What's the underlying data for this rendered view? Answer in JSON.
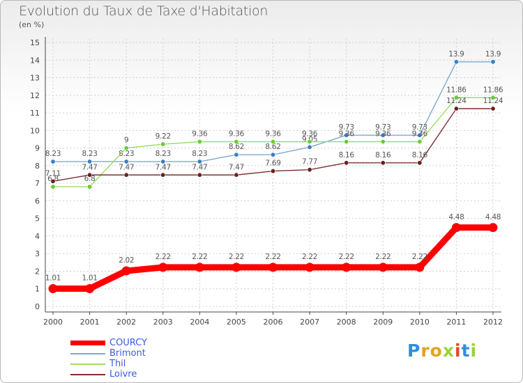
{
  "title": "Evolution du Taux de Taxe d'Habitation",
  "subtitle": "(en %)",
  "logo": {
    "letters": [
      "P",
      "r",
      "o",
      "x",
      "i",
      "t",
      "i"
    ],
    "colors": [
      "#2f8ee0",
      "#e8a21c",
      "#e8a21c",
      "#9bd23a",
      "#e04a2a",
      "#2f8ee0",
      "#9bd23a"
    ]
  },
  "chart_data": {
    "type": "line",
    "x": [
      "2000",
      "2001",
      "2002",
      "2003",
      "2004",
      "2005",
      "2006",
      "2007",
      "2008",
      "2009",
      "2010",
      "2011",
      "2012"
    ],
    "ylim": [
      0,
      15
    ],
    "yticks": [
      0,
      1,
      2,
      3,
      4,
      5,
      6,
      7,
      8,
      9,
      10,
      11,
      12,
      13,
      14,
      15
    ],
    "grid": true,
    "legend_position": "bottom-left",
    "series": [
      {
        "name": "COURCY",
        "color": "#ff0000",
        "thick": true,
        "values": [
          1.01,
          1.01,
          2.02,
          2.22,
          2.22,
          2.22,
          2.22,
          2.22,
          2.22,
          2.22,
          2.22,
          4.48,
          4.48
        ],
        "labels": [
          "1.01",
          "1.01",
          "2.02",
          "2.22",
          "2.22",
          "2.22",
          "2.22",
          "2.22",
          "2.22",
          "2.22",
          "2.22",
          "4.48",
          "4.48"
        ]
      },
      {
        "name": "Brimont",
        "color": "#7fa8d0",
        "marker": "#3a7fc4",
        "values": [
          8.23,
          8.23,
          8.23,
          8.23,
          8.23,
          8.62,
          8.62,
          9.05,
          9.73,
          9.73,
          9.73,
          13.9,
          13.9
        ],
        "labels": [
          "8.23",
          "8.23",
          "8.23",
          "8.23",
          "8.23",
          "8.62",
          "8.62",
          "9.05",
          "9.73",
          "9.73",
          "9.73",
          "13.9",
          "13.9"
        ]
      },
      {
        "name": "Thil",
        "color": "#99dd66",
        "marker": "#66cc33",
        "values": [
          6.8,
          6.8,
          9.0,
          9.22,
          9.36,
          9.36,
          9.36,
          9.36,
          9.36,
          9.36,
          9.36,
          11.86,
          11.86
        ],
        "labels": [
          "6.8",
          "6.8",
          "9",
          "9.22",
          "9.36",
          "9.36",
          "9.36",
          "9.36",
          "9.36",
          "9.36",
          "9.36",
          "11.86",
          "11.86"
        ]
      },
      {
        "name": "Loivre",
        "color": "#7a3030",
        "marker": "#6b2020",
        "values": [
          7.11,
          7.47,
          7.47,
          7.47,
          7.47,
          7.47,
          7.69,
          7.77,
          8.16,
          8.16,
          8.16,
          11.24,
          11.24
        ],
        "labels": [
          "7.11",
          "7.47",
          "7.47",
          "7.47",
          "7.47",
          "7.47",
          "7.69",
          "7.77",
          "8.16",
          "8.16",
          "8.16",
          "11.24",
          "11.24"
        ]
      }
    ]
  }
}
